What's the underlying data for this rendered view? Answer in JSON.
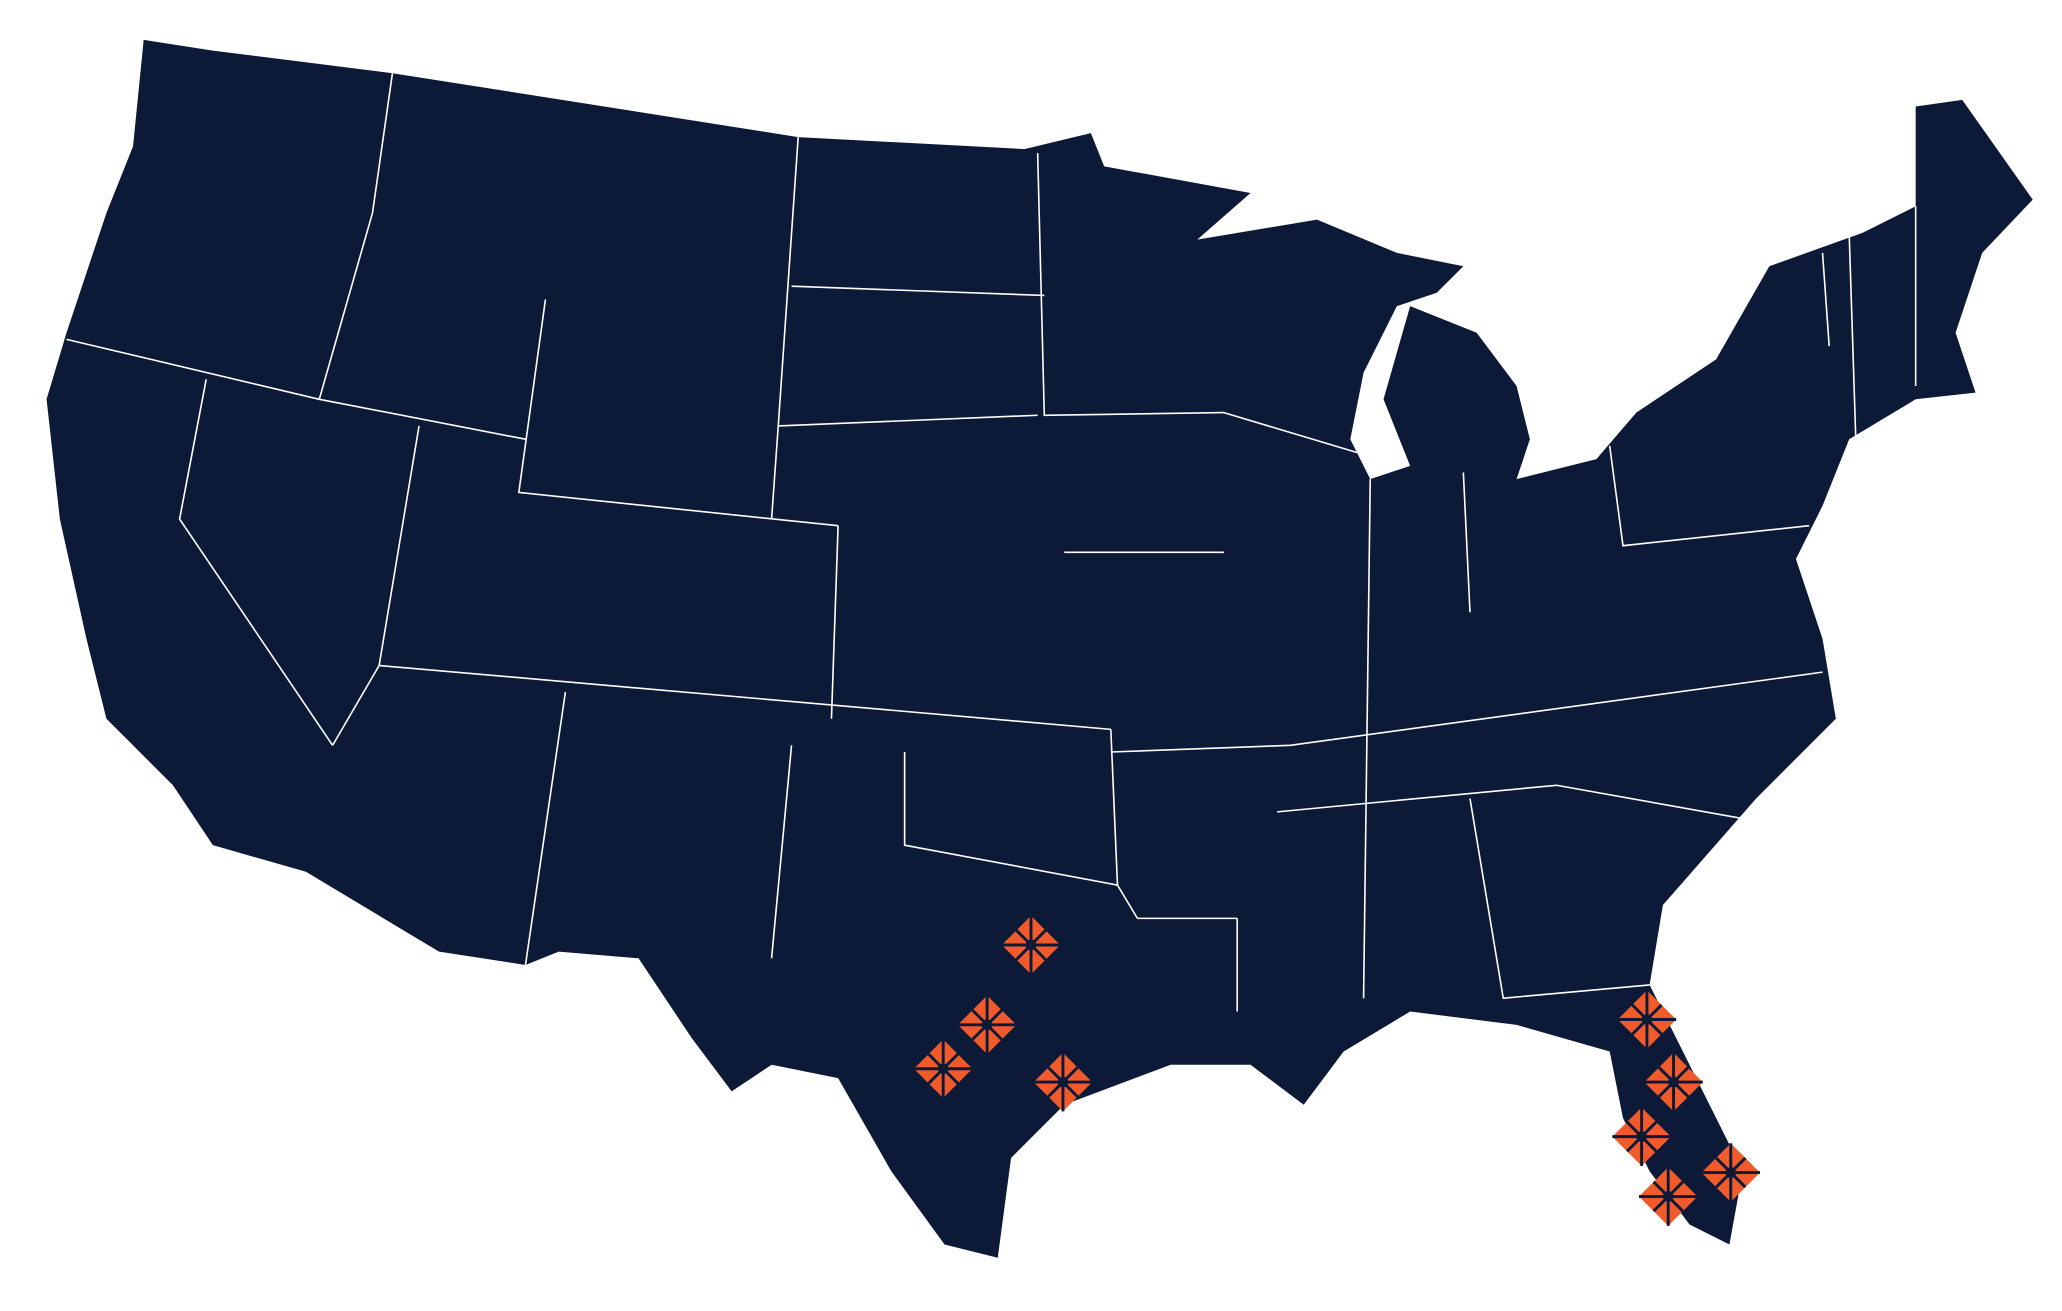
{
  "map": {
    "land_color": "#0c1a38",
    "border_color": "#ffffff",
    "background_color": "#ffffff",
    "marker_color": "#f15a2b",
    "marker_icon": "compass-diamond-icon"
  }
}
